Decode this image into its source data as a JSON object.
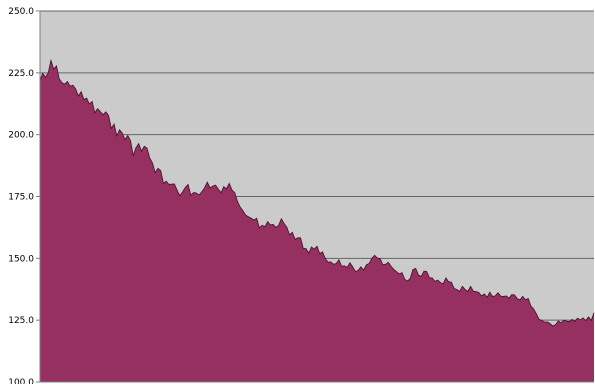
{
  "chart_data": {
    "type": "area",
    "title": "",
    "xlabel": "",
    "ylabel": "",
    "ylim": [
      100,
      250
    ],
    "yticks": [
      100,
      125,
      150,
      175,
      200,
      225,
      250
    ],
    "ytick_labels": [
      "100.0",
      "125.0",
      "150.0",
      "175.0",
      "200.0",
      "225.0",
      "250.0"
    ],
    "grid": "horizontal",
    "legend": "none",
    "colors": {
      "area_fill": "#963060",
      "plot_background": "#cbcbcb",
      "gridline": "#666666",
      "axis": "#808080"
    },
    "series": [
      {
        "values": [
          222.0,
          224.8,
          223.2,
          225.0,
          230.0,
          226.5,
          227.8,
          222.6,
          221.0,
          220.4,
          221.5,
          219.6,
          220.0,
          218.5,
          215.6,
          217.4,
          214.2,
          214.8,
          212.4,
          213.4,
          208.8,
          210.5,
          209.3,
          208.1,
          209.2,
          207.8,
          202.5,
          204.3,
          199.5,
          202.0,
          200.6,
          198.0,
          199.7,
          197.6,
          191.6,
          194.8,
          196.4,
          193.3,
          195.3,
          194.6,
          190.6,
          188.6,
          184.6,
          186.4,
          185.5,
          180.3,
          181.2,
          179.9,
          180.0,
          180.1,
          177.5,
          175.3,
          176.9,
          178.7,
          179.9,
          175.5,
          176.6,
          176.4,
          175.6,
          176.9,
          178.5,
          180.8,
          178.5,
          179.2,
          179.6,
          178.0,
          176.5,
          179.0,
          178.1,
          180.3,
          177.6,
          176.6,
          173.0,
          170.7,
          169.2,
          167.5,
          166.8,
          166.2,
          165.5,
          166.2,
          162.3,
          163.4,
          162.8,
          164.8,
          163.5,
          163.7,
          162.5,
          163.3,
          166.0,
          164.1,
          162.6,
          159.5,
          160.5,
          157.7,
          158.3,
          158.3,
          154.0,
          153.9,
          152.1,
          154.6,
          153.7,
          154.9,
          151.9,
          152.6,
          150.0,
          148.4,
          148.6,
          147.6,
          147.9,
          149.4,
          146.8,
          147.0,
          146.3,
          148.2,
          146.6,
          144.7,
          145.1,
          146.6,
          145.2,
          147.4,
          147.9,
          150.0,
          151.2,
          150.1,
          149.9,
          147.4,
          147.6,
          148.4,
          146.8,
          145.5,
          144.6,
          143.7,
          144.2,
          141.5,
          140.8,
          141.9,
          145.5,
          145.9,
          143.2,
          142.7,
          144.8,
          144.7,
          142.1,
          142.1,
          140.7,
          141.2,
          140.2,
          139.7,
          142.1,
          140.5,
          140.4,
          137.8,
          137.4,
          136.6,
          138.7,
          137.4,
          136.6,
          138.7,
          136.7,
          136.6,
          136.2,
          134.8,
          135.6,
          134.2,
          136.3,
          134.6,
          134.8,
          136.1,
          134.7,
          134.6,
          134.8,
          133.9,
          135.3,
          135.2,
          133.7,
          133.2,
          134.6,
          133.2,
          133.8,
          130.7,
          129.5,
          127.5,
          125.3,
          124.8,
          124.2,
          124.3,
          123.6,
          122.6,
          123.2,
          124.7,
          123.9,
          125.0,
          124.6,
          124.4,
          125.3,
          124.5,
          125.8,
          125.1,
          125.9,
          124.8,
          126.3,
          124.9,
          128.0
        ]
      }
    ]
  }
}
